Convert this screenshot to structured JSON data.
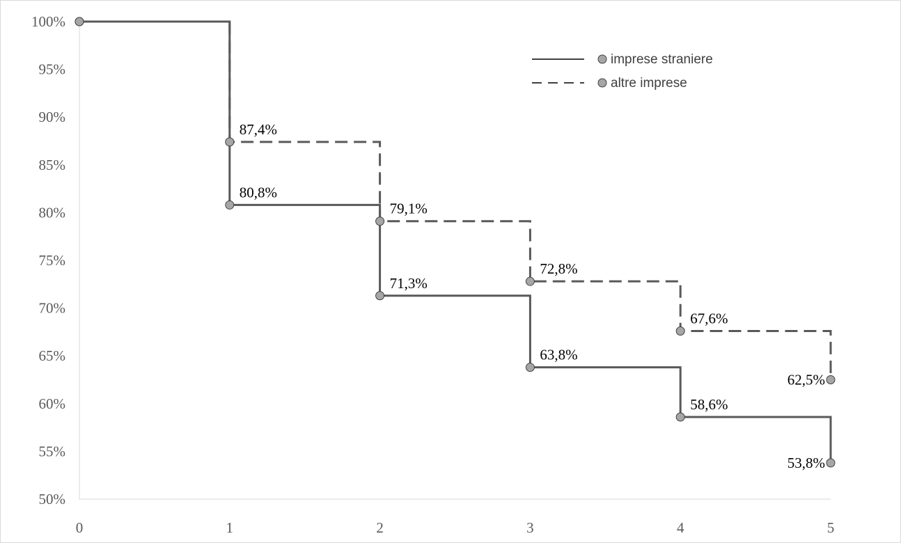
{
  "chart_data": {
    "type": "line",
    "step": true,
    "x": [
      0,
      1,
      2,
      3,
      4,
      5
    ],
    "xlim": [
      0,
      5
    ],
    "ylim": [
      50,
      100
    ],
    "y_ticks": [
      50,
      55,
      60,
      65,
      70,
      75,
      80,
      85,
      90,
      95,
      100
    ],
    "y_tick_labels": [
      "50%",
      "55%",
      "60%",
      "65%",
      "70%",
      "75%",
      "80%",
      "85%",
      "90%",
      "95%",
      "100%"
    ],
    "x_tick_labels": [
      "0",
      "1",
      "2",
      "3",
      "4",
      "5"
    ],
    "xlabel": "",
    "ylabel": "",
    "title": "",
    "grid": false,
    "legend_position": "top-right",
    "series": [
      {
        "name": "imprese straniere",
        "line_style": "solid",
        "color": "#595959",
        "marker_color": "#a6a6a6",
        "values": [
          100,
          80.8,
          71.3,
          63.8,
          58.6,
          53.8
        ],
        "labels": [
          "",
          "80,8%",
          "71,3%",
          "63,8%",
          "58,6%",
          "53,8%"
        ]
      },
      {
        "name": "altre imprese",
        "line_style": "dashed",
        "color": "#595959",
        "marker_color": "#a6a6a6",
        "values": [
          100,
          87.4,
          79.1,
          72.8,
          67.6,
          62.5
        ],
        "labels": [
          "",
          "87,4%",
          "79,1%",
          "72,8%",
          "67,6%",
          "62,5%"
        ]
      }
    ]
  }
}
